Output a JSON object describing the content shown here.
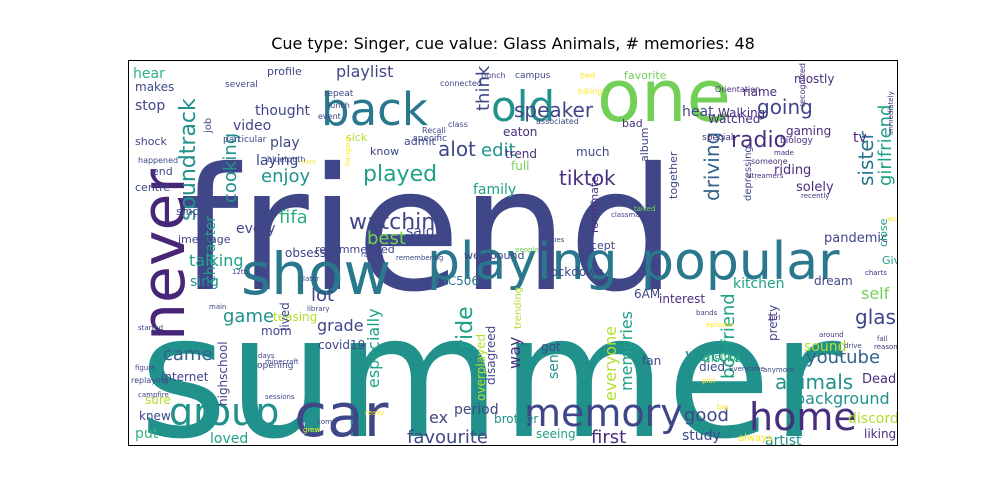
{
  "title": "Cue type: Singer, cue value: Glass Animals, # memories: 48",
  "palette": {
    "dark_purple": "#472f7d",
    "indigo": "#3f4788",
    "blue": "#33638d",
    "steel": "#2a788e",
    "teal": "#21918c",
    "sea": "#1fa187",
    "green": "#2db27d",
    "lime": "#73d056",
    "yellow_green": "#b4de2c",
    "yellow": "#fde725",
    "purple": "#482677"
  },
  "words": [
    {
      "text": "summer"
    },
    {
      "text": "friend"
    },
    {
      "text": "one"
    },
    {
      "text": "never"
    },
    {
      "text": "show"
    },
    {
      "text": "playing"
    },
    {
      "text": "popular"
    },
    {
      "text": "car"
    },
    {
      "text": "back"
    },
    {
      "text": "old"
    },
    {
      "text": "memory"
    },
    {
      "text": "group"
    },
    {
      "text": "home"
    },
    {
      "text": "soundtrack"
    },
    {
      "text": "watching"
    },
    {
      "text": "played"
    },
    {
      "text": "going"
    },
    {
      "text": "radio"
    },
    {
      "text": "speaker"
    },
    {
      "text": "tiktok"
    },
    {
      "text": "driving"
    },
    {
      "text": "girlfriend"
    },
    {
      "text": "sister"
    },
    {
      "text": "alot"
    },
    {
      "text": "edit"
    },
    {
      "text": "think"
    },
    {
      "text": "enjoy"
    },
    {
      "text": "cooking"
    },
    {
      "text": "fifa"
    },
    {
      "text": "best"
    },
    {
      "text": "playlist"
    },
    {
      "text": "video"
    },
    {
      "text": "thought"
    },
    {
      "text": "play"
    },
    {
      "text": "laying"
    },
    {
      "text": "character"
    },
    {
      "text": "talking"
    },
    {
      "text": "sing"
    },
    {
      "text": "stop"
    },
    {
      "text": "hear"
    },
    {
      "text": "makes"
    },
    {
      "text": "family"
    },
    {
      "text": "heat"
    },
    {
      "text": "tv"
    },
    {
      "text": "kitchen"
    },
    {
      "text": "self"
    },
    {
      "text": "glass"
    },
    {
      "text": "youtube"
    },
    {
      "text": "animals"
    },
    {
      "text": "background"
    },
    {
      "text": "discord"
    },
    {
      "text": "boyfriend"
    },
    {
      "text": "watch"
    },
    {
      "text": "came"
    },
    {
      "text": "game"
    },
    {
      "text": "lot"
    },
    {
      "text": "grade"
    },
    {
      "text": "especially"
    },
    {
      "text": "ride"
    },
    {
      "text": "way"
    },
    {
      "text": "memories"
    },
    {
      "text": "everyone"
    },
    {
      "text": "favourite"
    },
    {
      "text": "first"
    },
    {
      "text": "good"
    },
    {
      "text": "ex"
    },
    {
      "text": "period"
    },
    {
      "text": "loved"
    },
    {
      "text": "put"
    },
    {
      "text": "artist"
    },
    {
      "text": "study"
    },
    {
      "text": "sound"
    },
    {
      "text": "riding"
    },
    {
      "text": "solely"
    },
    {
      "text": "Dead"
    },
    {
      "text": "pandemic"
    },
    {
      "text": "dream"
    },
    {
      "text": "interest"
    },
    {
      "text": "lockdown"
    },
    {
      "text": "TTC506"
    },
    {
      "text": "6AM"
    },
    {
      "text": "sent"
    },
    {
      "text": "said"
    },
    {
      "text": "obsessed"
    },
    {
      "text": "every"
    },
    {
      "text": "teasing"
    },
    {
      "text": "covid19"
    },
    {
      "text": "highschool"
    },
    {
      "text": "internet"
    },
    {
      "text": "knew"
    },
    {
      "text": "sure"
    },
    {
      "text": "mom"
    },
    {
      "text": "lived"
    },
    {
      "text": "overplayed"
    },
    {
      "text": "disagreed"
    },
    {
      "text": "got"
    },
    {
      "text": "fan"
    },
    {
      "text": "brother"
    },
    {
      "text": "seeing"
    },
    {
      "text": "died"
    },
    {
      "text": "dislike"
    },
    {
      "text": "pretty"
    },
    {
      "text": "liking"
    },
    {
      "text": "always"
    },
    {
      "text": "Watched"
    },
    {
      "text": "Walking"
    },
    {
      "text": "gaming"
    },
    {
      "text": "name"
    },
    {
      "text": "mostly"
    },
    {
      "text": "favorite"
    },
    {
      "text": "album"
    },
    {
      "text": "much"
    },
    {
      "text": "trend"
    },
    {
      "text": "full"
    },
    {
      "text": "eaton"
    },
    {
      "text": "know"
    },
    {
      "text": "sick"
    },
    {
      "text": "admit"
    },
    {
      "text": "recommended"
    },
    {
      "text": "westbound"
    },
    {
      "text": "except"
    },
    {
      "text": "roommate"
    },
    {
      "text": "together"
    },
    {
      "text": "bad"
    },
    {
      "text": "profile"
    },
    {
      "text": "job"
    },
    {
      "text": "shock"
    },
    {
      "text": "end"
    },
    {
      "text": "centre"
    },
    {
      "text": "imessage"
    },
    {
      "text": "smp"
    },
    {
      "text": "Give"
    },
    {
      "text": "close"
    },
    {
      "text": "trending"
    },
    {
      "text": "depressing"
    },
    {
      "text": "special"
    },
    {
      "text": "biology"
    },
    {
      "text": "bluetooth"
    },
    {
      "text": "happened"
    },
    {
      "text": "repeat"
    },
    {
      "text": "lunch"
    },
    {
      "text": "event"
    },
    {
      "text": "particular"
    },
    {
      "text": "several"
    },
    {
      "text": "specific"
    },
    {
      "text": "Recall"
    },
    {
      "text": "class"
    },
    {
      "text": "associated"
    },
    {
      "text": "connected"
    },
    {
      "text": "bunch"
    },
    {
      "text": "campus"
    },
    {
      "text": "biking"
    },
    {
      "text": "bed"
    },
    {
      "text": "Orientation"
    },
    {
      "text": "recognized"
    },
    {
      "text": "someone"
    },
    {
      "text": "made"
    },
    {
      "text": "streamers"
    },
    {
      "text": "recently"
    },
    {
      "text": "immediately"
    },
    {
      "text": "workout"
    },
    {
      "text": "charts"
    },
    {
      "text": "reason"
    },
    {
      "text": "around"
    },
    {
      "text": "girl"
    },
    {
      "text": "bands"
    },
    {
      "text": "episode"
    },
    {
      "text": "plot"
    },
    {
      "text": "Everytime"
    },
    {
      "text": "big"
    },
    {
      "text": "anymore"
    },
    {
      "text": "drive"
    },
    {
      "text": "fall"
    },
    {
      "text": "really"
    },
    {
      "text": "come"
    },
    {
      "text": "grew"
    },
    {
      "text": "sessions"
    },
    {
      "text": "minecraft"
    },
    {
      "text": "days"
    },
    {
      "text": "opening"
    },
    {
      "text": "replaying"
    },
    {
      "text": "campfire"
    },
    {
      "text": "figure"
    },
    {
      "text": "started"
    },
    {
      "text": "main"
    },
    {
      "text": "12th"
    },
    {
      "text": "rain"
    },
    {
      "text": "remembering"
    },
    {
      "text": "amoes"
    },
    {
      "text": "people"
    },
    {
      "text": "talked"
    },
    {
      "text": "formed"
    },
    {
      "text": "classmates"
    },
    {
      "text": "hangout"
    },
    {
      "text": "library"
    },
    {
      "text": "later"
    },
    {
      "text": "cars"
    }
  ]
}
